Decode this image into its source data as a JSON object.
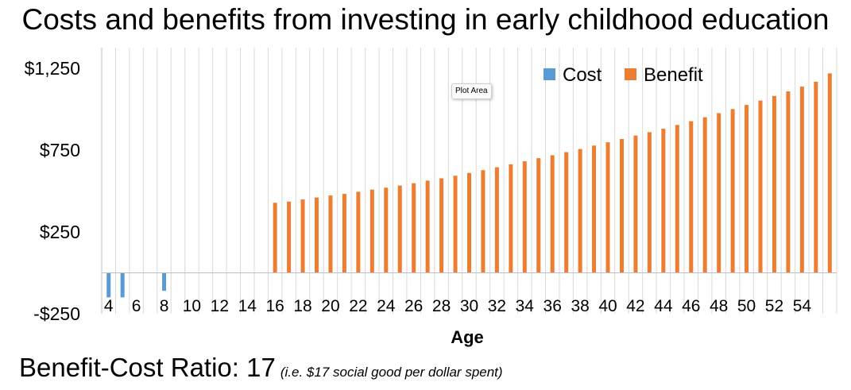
{
  "colors": {
    "cost": "#5B9BD5",
    "benefit": "#ED7D31",
    "grid": "#D9D9D9",
    "axis": "#BFBFBF"
  },
  "tooltip_text": "Plot Area",
  "footer": {
    "ratio_text": "Benefit-Cost Ratio: 17",
    "note": "(i.e. $17 social good per dollar spent)"
  },
  "chart_data": {
    "type": "bar",
    "title": "Costs and benefits from investing in early childhood education",
    "xlabel": "Age",
    "ylabel": "",
    "ylim": [
      -250,
      1375
    ],
    "y_ticks": [
      -250,
      250,
      750,
      1250
    ],
    "y_tick_labels": [
      "-$250",
      "$250",
      "$750",
      "$1,250"
    ],
    "x_tick_labels": [
      "4",
      "6",
      "8",
      "10",
      "12",
      "14",
      "16",
      "18",
      "20",
      "22",
      "24",
      "26",
      "28",
      "30",
      "32",
      "34",
      "36",
      "38",
      "40",
      "42",
      "44",
      "46",
      "48",
      "50",
      "52",
      "54"
    ],
    "grid": true,
    "legend": "top-right",
    "categories": [
      4,
      5,
      6,
      7,
      8,
      9,
      10,
      11,
      12,
      13,
      14,
      15,
      16,
      17,
      18,
      19,
      20,
      21,
      22,
      23,
      24,
      25,
      26,
      27,
      28,
      29,
      30,
      31,
      32,
      33,
      34,
      35,
      36,
      37,
      38,
      39,
      40,
      41,
      42,
      43,
      44,
      45,
      46,
      47,
      48,
      49,
      50,
      51,
      52,
      53,
      54,
      55,
      56
    ],
    "series": [
      {
        "name": "Cost",
        "values": [
          -150,
          -150,
          0,
          0,
          -110,
          0,
          0,
          0,
          0,
          0,
          0,
          0,
          0,
          0,
          0,
          0,
          0,
          0,
          0,
          0,
          0,
          0,
          0,
          0,
          0,
          0,
          0,
          0,
          0,
          0,
          0,
          0,
          0,
          0,
          0,
          0,
          0,
          0,
          0,
          0,
          0,
          0,
          0,
          0,
          0,
          0,
          0,
          0,
          0,
          0,
          0,
          0,
          0
        ]
      },
      {
        "name": "Benefit",
        "values": [
          0,
          0,
          0,
          0,
          0,
          0,
          0,
          0,
          0,
          0,
          0,
          0,
          428,
          435,
          448,
          460,
          472,
          482,
          495,
          508,
          520,
          533,
          547,
          563,
          577,
          593,
          610,
          627,
          645,
          663,
          681,
          700,
          718,
          737,
          756,
          777,
          797,
          817,
          838,
          859,
          880,
          903,
          926,
          950,
          975,
          1000,
          1025,
          1052,
          1080,
          1108,
          1137,
          1167,
          1218
        ]
      }
    ]
  }
}
